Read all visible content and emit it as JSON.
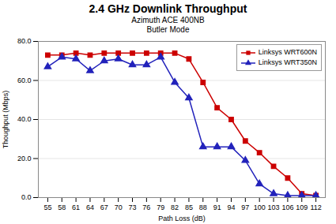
{
  "chart_data": {
    "type": "line",
    "title": "2.4 GHz Downlink Throughput",
    "subtitle": [
      "Azimuth ACE 400NB",
      "Butler Mode"
    ],
    "xlabel": "Path Loss (dB)",
    "ylabel": "Thoughput (Mbps)",
    "x": [
      55,
      58,
      61,
      64,
      67,
      70,
      73,
      76,
      79,
      82,
      85,
      88,
      91,
      94,
      97,
      100,
      103,
      106,
      109,
      112
    ],
    "series": [
      {
        "name": "Linksys WRT600N",
        "color": "#cc0000",
        "marker": "square",
        "values": [
          73,
          73,
          74,
          73,
          74,
          74,
          74,
          74,
          74,
          74,
          71,
          59,
          46,
          40,
          29,
          23,
          16,
          10,
          2,
          1
        ]
      },
      {
        "name": "Linksys WRT350N",
        "color": "#2222bb",
        "marker": "triangle",
        "values": [
          67,
          72,
          71,
          65,
          70,
          71,
          68,
          68,
          72,
          59,
          51,
          26,
          26,
          26,
          19,
          7,
          2,
          1,
          1,
          1
        ]
      }
    ],
    "xlim": [
      53,
      114
    ],
    "xticks": [
      55,
      58,
      61,
      64,
      67,
      70,
      73,
      76,
      79,
      82,
      85,
      88,
      91,
      94,
      97,
      100,
      103,
      106,
      109,
      112
    ],
    "ylim": [
      0,
      80
    ],
    "yticks": [
      {
        "value": 0,
        "label": "0.0"
      },
      {
        "value": 20,
        "label": "20.0"
      },
      {
        "value": 40,
        "label": "40.0"
      },
      {
        "value": 60,
        "label": "60.0"
      },
      {
        "value": 80,
        "label": "80.0"
      }
    ],
    "grid": "y",
    "legend": "upper right"
  }
}
